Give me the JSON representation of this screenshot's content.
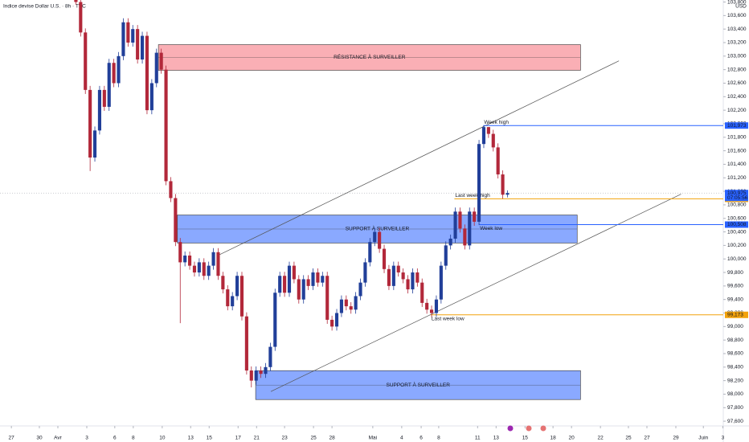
{
  "chart_data": {
    "type": "candlestick",
    "title": "Indice devise Dollar U.S. · 8h · TVC",
    "currency": "USD",
    "up_color": "#213f99",
    "down_color": "#b2283a",
    "grid": false,
    "xlim": [
      0,
      152.5
    ],
    "ylim": [
      97530,
      103830
    ],
    "x": [
      16,
      17,
      18,
      19,
      20,
      21,
      22,
      23,
      24,
      25,
      26,
      27,
      28,
      29,
      30,
      31,
      32,
      33,
      34,
      35,
      36,
      37,
      38,
      39,
      40,
      41,
      42,
      43,
      44,
      45,
      46,
      47,
      48,
      49,
      50,
      51,
      52,
      53,
      54,
      55,
      56,
      57,
      58,
      59,
      60,
      61,
      62,
      63,
      64,
      65,
      66,
      67,
      68,
      69,
      70,
      71,
      72,
      73,
      74,
      75,
      76,
      77,
      78,
      79,
      80,
      81,
      82,
      83,
      84,
      85,
      86,
      87,
      88,
      89,
      90,
      91,
      92,
      93,
      94,
      95,
      96,
      97,
      98,
      99,
      100,
      101,
      102,
      103,
      104,
      105,
      106,
      107
    ],
    "open": [
      103850,
      103800,
      103350,
      102500,
      101500,
      101900,
      102500,
      102250,
      102900,
      102600,
      103000,
      103500,
      103200,
      103400,
      102950,
      103300,
      102200,
      102600,
      103050,
      102800,
      101150,
      100900,
      100250,
      99950,
      100050,
      99900,
      99800,
      99950,
      99750,
      99900,
      100100,
      99750,
      99550,
      99300,
      99450,
      99750,
      99150,
      98350,
      98200,
      98350,
      98300,
      98400,
      98700,
      99500,
      99750,
      99500,
      99900,
      99700,
      99400,
      99700,
      99600,
      99800,
      99650,
      99750,
      99100,
      99000,
      99200,
      99400,
      99300,
      99250,
      99450,
      99650,
      99950,
      100250,
      100400,
      100150,
      99850,
      99600,
      99900,
      99800,
      99700,
      99550,
      99800,
      99650,
      99350,
      99250,
      99200,
      99400,
      99900,
      100200,
      100300,
      100700,
      100450,
      100200,
      100700,
      100550,
      101700,
      101950,
      101850,
      101650,
      101250,
      100950
    ],
    "high": [
      103900,
      103860,
      103410,
      102560,
      101960,
      102560,
      102560,
      102960,
      102960,
      103060,
      103560,
      103560,
      103460,
      103460,
      103360,
      103360,
      102660,
      103110,
      103110,
      102860,
      101210,
      100960,
      100310,
      100110,
      100110,
      99960,
      100010,
      100010,
      99960,
      100160,
      100160,
      99810,
      99610,
      99510,
      99810,
      99810,
      99210,
      98410,
      98410,
      98410,
      98460,
      98760,
      99560,
      99810,
      99810,
      99960,
      99960,
      99760,
      99760,
      99760,
      99860,
      99860,
      99810,
      99810,
      99160,
      99260,
      99460,
      99460,
      99360,
      99510,
      99710,
      100010,
      100310,
      100460,
      100460,
      100210,
      99910,
      99960,
      99960,
      99860,
      99760,
      99860,
      99860,
      99710,
      99410,
      99310,
      99460,
      99960,
      100260,
      100360,
      100760,
      100760,
      100510,
      100760,
      100760,
      101760,
      101973,
      101950,
      101910,
      101710,
      101310,
      101015
    ],
    "low": [
      103760,
      103290,
      102440,
      101300,
      101440,
      101840,
      102190,
      102190,
      102540,
      102540,
      102940,
      103140,
      103140,
      102890,
      102890,
      102140,
      102140,
      102540,
      102740,
      101090,
      100840,
      100190,
      99050,
      99890,
      99840,
      99740,
      99740,
      99690,
      99690,
      99840,
      99690,
      99490,
      99240,
      99240,
      99390,
      99090,
      98290,
      98100,
      98140,
      98240,
      98240,
      98340,
      98640,
      99440,
      99440,
      99440,
      99640,
      99340,
      99340,
      99540,
      99540,
      99590,
      99590,
      99040,
      98940,
      98940,
      99140,
      99240,
      99190,
      99190,
      99390,
      99590,
      99890,
      100190,
      100090,
      99790,
      99540,
      99540,
      99740,
      99640,
      99490,
      99490,
      99590,
      99290,
      99190,
      99140,
      99140,
      99340,
      99840,
      100140,
      100240,
      100390,
      100140,
      100140,
      100490,
      100500,
      101640,
      101790,
      101590,
      101190,
      100890,
      100910
    ],
    "close": [
      103800,
      103350,
      102500,
      101500,
      101900,
      102500,
      102250,
      102900,
      102600,
      103000,
      103500,
      103200,
      103400,
      102950,
      103300,
      102200,
      102600,
      103050,
      102800,
      101150,
      100900,
      100250,
      99950,
      100050,
      99900,
      99800,
      99950,
      99750,
      99900,
      100100,
      99750,
      99550,
      99300,
      99450,
      99750,
      99150,
      98350,
      98200,
      98350,
      98300,
      98400,
      98700,
      99500,
      99750,
      99500,
      99900,
      99700,
      99400,
      99700,
      99600,
      99800,
      99650,
      99750,
      99100,
      99000,
      99200,
      99400,
      99300,
      99250,
      99450,
      99650,
      99950,
      100250,
      100400,
      100150,
      99850,
      99600,
      99900,
      99800,
      99700,
      99550,
      99800,
      99650,
      99350,
      99250,
      99200,
      99400,
      99900,
      100200,
      100300,
      100700,
      100450,
      100200,
      100700,
      100550,
      101700,
      101950,
      101850,
      101650,
      101250,
      100950,
      100975
    ],
    "yticks": [
      {
        "value": 97600,
        "label": "97,600"
      },
      {
        "value": 97800,
        "label": "97,800"
      },
      {
        "value": 98000,
        "label": "98,000"
      },
      {
        "value": 98200,
        "label": "98,200"
      },
      {
        "value": 98400,
        "label": "98,400"
      },
      {
        "value": 98600,
        "label": "98,600"
      },
      {
        "value": 98800,
        "label": "98,800"
      },
      {
        "value": 99000,
        "label": "99,000"
      },
      {
        "value": 99200,
        "label": "99,200"
      },
      {
        "value": 99400,
        "label": "99,400"
      },
      {
        "value": 99600,
        "label": "99,600"
      },
      {
        "value": 99800,
        "label": "99,800"
      },
      {
        "value": 100000,
        "label": "100,000"
      },
      {
        "value": 100200,
        "label": "100,200"
      },
      {
        "value": 100400,
        "label": "100,400"
      },
      {
        "value": 100600,
        "label": "100,600"
      },
      {
        "value": 100800,
        "label": "100,800"
      },
      {
        "value": 101000,
        "label": "101,000"
      },
      {
        "value": 101200,
        "label": "101,200"
      },
      {
        "value": 101400,
        "label": "101,400"
      },
      {
        "value": 101600,
        "label": "101,600"
      },
      {
        "value": 101800,
        "label": "101,800"
      },
      {
        "value": 102000,
        "label": "102,000"
      },
      {
        "value": 102200,
        "label": "102,200"
      },
      {
        "value": 102400,
        "label": "102,400"
      },
      {
        "value": 102600,
        "label": "102,600"
      },
      {
        "value": 102800,
        "label": "102,800"
      },
      {
        "value": 103000,
        "label": "103,000"
      },
      {
        "value": 103200,
        "label": "103,200"
      },
      {
        "value": 103400,
        "label": "103,400"
      },
      {
        "value": 103600,
        "label": "103,600"
      },
      {
        "value": 103800,
        "label": "103,800"
      }
    ],
    "xticks": [
      {
        "value": 2.4,
        "label": "27"
      },
      {
        "value": 8.3,
        "label": "30"
      },
      {
        "value": 12.2,
        "label": "Avr"
      },
      {
        "value": 18.3,
        "label": "3"
      },
      {
        "value": 24.2,
        "label": "6"
      },
      {
        "value": 28.1,
        "label": "8"
      },
      {
        "value": 34.2,
        "label": "10"
      },
      {
        "value": 40.2,
        "label": "13"
      },
      {
        "value": 44.1,
        "label": "15"
      },
      {
        "value": 50.2,
        "label": "17"
      },
      {
        "value": 54.1,
        "label": "21"
      },
      {
        "value": 60,
        "label": "23"
      },
      {
        "value": 66.1,
        "label": "25"
      },
      {
        "value": 70,
        "label": "28"
      },
      {
        "value": 78.6,
        "label": "Mai"
      },
      {
        "value": 84.7,
        "label": "4"
      },
      {
        "value": 88.8,
        "label": "6"
      },
      {
        "value": 92.5,
        "label": "8"
      },
      {
        "value": 100.7,
        "label": "11"
      },
      {
        "value": 104.6,
        "label": "13"
      },
      {
        "value": 110.7,
        "label": "15"
      },
      {
        "value": 116.6,
        "label": "18"
      },
      {
        "value": 120.5,
        "label": "20"
      },
      {
        "value": 126.6,
        "label": "22"
      },
      {
        "value": 132.5,
        "label": "25"
      },
      {
        "value": 136.4,
        "label": "27"
      },
      {
        "value": 142.5,
        "label": "29"
      },
      {
        "value": 148.3,
        "label": "Juin"
      },
      {
        "value": 152.4,
        "label": "3"
      }
    ],
    "zones": [
      {
        "label": "RÉSISTANCE À SURVEILLER",
        "top": 103170,
        "bottom": 102790,
        "x": [
          33.4,
          122.4
        ],
        "color": "rgba(242,54,69,0.4)"
      },
      {
        "label": "SUPPORT À SURVEILLER",
        "top": 100650,
        "bottom": 100235,
        "x": [
          37.4,
          121.7
        ],
        "color": "rgba(41,98,255,0.55)"
      },
      {
        "label": "SUPPORT À SURVEILLER",
        "top": 98348,
        "bottom": 97920,
        "x": [
          53.9,
          122.4
        ],
        "color": "rgba(41,98,255,0.55)"
      }
    ],
    "trendlines": [
      {
        "x": [
          46.1,
          130.5
        ],
        "y": [
          100057,
          102930
        ],
        "color": "#555"
      },
      {
        "x": [
          57.1,
          143.6
        ],
        "y": [
          98039,
          100959
        ],
        "color": "#555"
      }
    ],
    "levels": [
      {
        "label": "Week high",
        "value": 101973,
        "value_label": "101,973",
        "color": "#2962ff",
        "x0": 101.9,
        "label_side": "above"
      },
      {
        "label": "Last week high",
        "value": 100889,
        "value_label": "100,889",
        "color": "#f2a20c",
        "x0": 95.8,
        "label_side": "above"
      },
      {
        "label": "Week low",
        "value": 100508,
        "value_label": "100,508",
        "color": "#2962ff",
        "x0": 101,
        "label_side": "below"
      },
      {
        "label": "Last week low",
        "value": 99173,
        "value_label": "99,173",
        "color": "#f2a20c",
        "x0": 90.8,
        "label_side": "below"
      }
    ],
    "last_price": {
      "value": 100975,
      "value_label": "100,975",
      "countdown": "07:05:56",
      "color": "#2962ff"
    }
  }
}
